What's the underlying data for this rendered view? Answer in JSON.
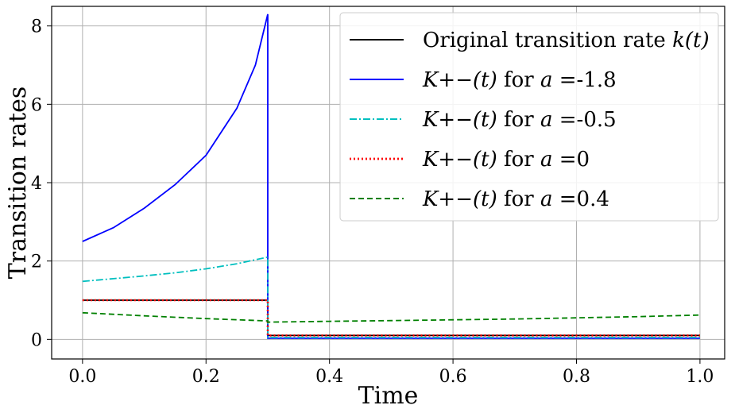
{
  "chart_data": {
    "type": "line",
    "title": "",
    "xlabel": "Time",
    "ylabel": "Transition rates",
    "xlim": [
      -0.05,
      1.04
    ],
    "ylim": [
      -0.5,
      8.5
    ],
    "xticks": [
      0.0,
      0.2,
      0.4,
      0.6,
      0.8,
      1.0
    ],
    "xtick_labels": [
      "0.0",
      "0.2",
      "0.4",
      "0.6",
      "0.8",
      "1.0"
    ],
    "yticks": [
      0,
      2,
      4,
      6,
      8
    ],
    "ytick_labels": [
      "0",
      "2",
      "4",
      "6",
      "8"
    ],
    "grid": true,
    "legend_position": "top-right",
    "series": [
      {
        "name": "Original transition rate k(t)",
        "legend": {
          "math": "",
          "text": "Original transition rate ",
          "math_suffix": "k(t)"
        },
        "color": "#000000",
        "style": "solid",
        "x": [
          0.0,
          0.3,
          0.3,
          1.0
        ],
        "y": [
          1.0,
          1.0,
          0.1,
          0.1
        ]
      },
      {
        "name": "K+-(t) for a =-1.8",
        "legend": {
          "math": "K+−(t)",
          "text": " for ",
          "math_suffix": "a",
          "value": " =-1.8"
        },
        "color": "#0000ff",
        "style": "solid",
        "x": [
          0.0,
          0.05,
          0.1,
          0.15,
          0.2,
          0.25,
          0.28,
          0.3,
          0.3,
          1.0
        ],
        "y": [
          2.5,
          2.85,
          3.35,
          3.95,
          4.7,
          5.9,
          7.0,
          8.3,
          0.03,
          0.03
        ]
      },
      {
        "name": "K+-(t) for a =-0.5",
        "legend": {
          "math": "K+−(t)",
          "text": " for ",
          "math_suffix": "a",
          "value": " =-0.5"
        },
        "color": "#00bfbf",
        "style": "dashdot",
        "x": [
          0.0,
          0.05,
          0.1,
          0.15,
          0.2,
          0.25,
          0.3,
          0.3,
          1.0
        ],
        "y": [
          1.48,
          1.55,
          1.62,
          1.7,
          1.8,
          1.93,
          2.1,
          0.05,
          0.05
        ]
      },
      {
        "name": "K+-(t) for a =0",
        "legend": {
          "math": "K+−(t)",
          "text": " for ",
          "math_suffix": "a",
          "value": " =0"
        },
        "color": "#ff0000",
        "style": "dotted",
        "x": [
          0.0,
          0.3,
          0.3,
          1.0
        ],
        "y": [
          1.0,
          1.0,
          0.1,
          0.1
        ]
      },
      {
        "name": "K+-(t) for a =0.4",
        "legend": {
          "math": "K+−(t)",
          "text": " for ",
          "math_suffix": "a",
          "value": " =0.4"
        },
        "color": "#008000",
        "style": "dashed",
        "x": [
          0.0,
          0.1,
          0.2,
          0.3,
          0.3,
          0.4,
          0.5,
          0.6,
          0.7,
          0.8,
          0.9,
          1.0
        ],
        "y": [
          0.68,
          0.6,
          0.53,
          0.47,
          0.44,
          0.46,
          0.48,
          0.5,
          0.52,
          0.55,
          0.58,
          0.62
        ]
      }
    ]
  }
}
